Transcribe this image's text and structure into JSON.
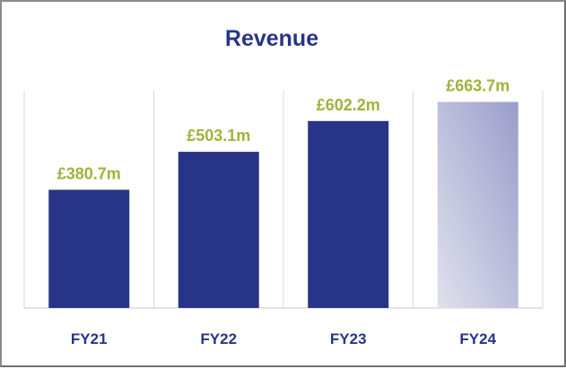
{
  "chart_data": {
    "type": "bar",
    "title": "Revenue",
    "categories": [
      "FY21",
      "FY22",
      "FY23",
      "FY24"
    ],
    "values": [
      380.7,
      503.1,
      602.2,
      663.7
    ],
    "value_labels": [
      "£380.7m",
      "£503.1m",
      "£602.2m",
      "£663.7m"
    ],
    "xlabel": "",
    "ylabel": "",
    "ylim": [
      0,
      700
    ],
    "grid": false,
    "legend": "none",
    "colors": {
      "bar": "#283487",
      "highlight_bar_start": "#dfe1ec",
      "highlight_bar_end": "#9a9dcb",
      "value_label": "#a0b33a",
      "category_label": "#283487",
      "title": "#283487",
      "axis": "#d9d9d9"
    },
    "highlight_category": "FY24"
  }
}
